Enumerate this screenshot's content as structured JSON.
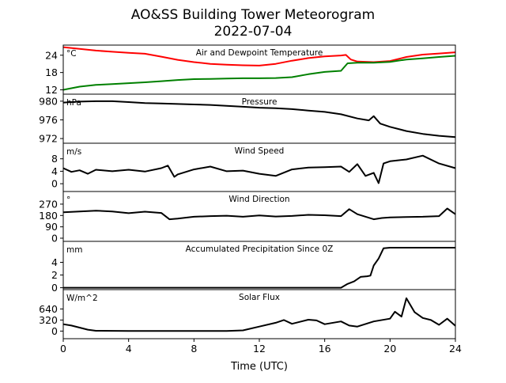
{
  "chart_data": {
    "type": "line",
    "title": "AO&SS Building Tower Meteorogram",
    "subtitle": "2022-07-04",
    "xlabel": "Time (UTC)",
    "xlim": [
      0,
      24
    ],
    "xticks": [
      0,
      4,
      8,
      12,
      16,
      20,
      24
    ],
    "panels": [
      {
        "title": "Air and Dewpoint Temperature",
        "unit": "°C",
        "ylim": [
          10.5,
          27.5
        ],
        "yticks": [
          12,
          18,
          24
        ],
        "series": [
          {
            "color": "#ff0000",
            "x": [
              0,
              1,
              2,
              3,
              4,
              5,
              6,
              7,
              8,
              9,
              10,
              11,
              12,
              13,
              14,
              15,
              16,
              17,
              17.3,
              17.6,
              18,
              19,
              20,
              21,
              22,
              23,
              24
            ],
            "y": [
              26.8,
              26.2,
              25.6,
              25.2,
              24.8,
              24.5,
              23.5,
              22.4,
              21.6,
              21.0,
              20.7,
              20.5,
              20.4,
              21.0,
              22.1,
              23.0,
              23.6,
              23.9,
              24.1,
              22.5,
              21.8,
              21.6,
              22.0,
              23.4,
              24.2,
              24.6,
              25.0
            ]
          },
          {
            "color": "#008000",
            "x": [
              0,
              1,
              2,
              3,
              4,
              5,
              6,
              7,
              8,
              9,
              10,
              11,
              12,
              13,
              14,
              15,
              16,
              17,
              17.4,
              18,
              19,
              20,
              21,
              22,
              23,
              24
            ],
            "y": [
              12.0,
              13.1,
              13.7,
              14.0,
              14.3,
              14.6,
              15.0,
              15.4,
              15.7,
              15.8,
              15.9,
              16.0,
              16.0,
              16.1,
              16.4,
              17.4,
              18.2,
              18.6,
              21.2,
              21.4,
              21.4,
              21.7,
              22.5,
              22.9,
              23.4,
              23.8
            ]
          }
        ]
      },
      {
        "title": "Pressure",
        "unit": "hPa",
        "ylim": [
          971,
          981.5
        ],
        "yticks": [
          972,
          976,
          980
        ],
        "series": [
          {
            "color": "#000000",
            "x": [
              0,
              1,
              2,
              3,
              4,
              5,
              6,
              7,
              8,
              9,
              10,
              11,
              12,
              13,
              14,
              15,
              16,
              17,
              18,
              18.7,
              19.0,
              19.4,
              20,
              21,
              22,
              23,
              24
            ],
            "y": [
              979.7,
              979.9,
              980.0,
              980.0,
              979.8,
              979.6,
              979.5,
              979.4,
              979.3,
              979.2,
              979.0,
              978.8,
              978.6,
              978.5,
              978.3,
              978.0,
              977.7,
              977.2,
              976.3,
              975.9,
              976.8,
              975.2,
              974.5,
              973.6,
              973.0,
              972.6,
              972.3
            ]
          }
        ]
      },
      {
        "title": "Wind Speed",
        "unit": "m/s",
        "ylim": [
          -2.5,
          13
        ],
        "yticks": [
          0,
          4,
          8
        ],
        "series": [
          {
            "color": "#000000",
            "x": [
              0,
              0.5,
              1,
              1.5,
              2,
              3,
              4,
              5,
              6,
              6.4,
              6.8,
              7,
              8,
              9,
              10,
              11,
              12,
              13,
              14,
              15,
              16,
              17,
              17.5,
              18,
              18.5,
              19,
              19.3,
              19.6,
              20,
              21,
              22,
              23,
              24
            ],
            "y": [
              5.0,
              3.8,
              4.3,
              3.2,
              4.5,
              4.0,
              4.5,
              3.9,
              5.0,
              5.8,
              2.2,
              3.0,
              4.6,
              5.5,
              4.0,
              4.2,
              3.2,
              2.5,
              4.6,
              5.2,
              5.3,
              5.5,
              3.8,
              6.3,
              2.5,
              3.5,
              0.2,
              6.5,
              7.2,
              7.8,
              9.0,
              6.5,
              5.0
            ]
          }
        ]
      },
      {
        "title": "Wind Direction",
        "unit": "°",
        "ylim": [
          -25,
          370
        ],
        "yticks": [
          0,
          90,
          180,
          270
        ],
        "series": [
          {
            "color": "#000000",
            "x": [
              0,
              1,
              2,
              3,
              4,
              5,
              6,
              6.5,
              7,
              8,
              9,
              10,
              11,
              12,
              13,
              14,
              15,
              16,
              17,
              17.5,
              18,
              19,
              19.5,
              20,
              21,
              22,
              23,
              23.5,
              24
            ],
            "y": [
              205,
              212,
              218,
              212,
              198,
              210,
              200,
              150,
              155,
              170,
              175,
              178,
              170,
              180,
              172,
              176,
              185,
              182,
              175,
              230,
              190,
              150,
              160,
              165,
              168,
              170,
              175,
              235,
              190
            ]
          }
        ]
      },
      {
        "title": "Accumulated Precipitation Since 0Z",
        "unit": "mm",
        "ylim": [
          -0.3,
          7.3
        ],
        "yticks": [
          0,
          2,
          4
        ],
        "series": [
          {
            "color": "#000000",
            "x": [
              0,
              17.0,
              17.4,
              17.8,
              18.2,
              18.6,
              18.8,
              19.0,
              19.3,
              19.6,
              20,
              24
            ],
            "y": [
              0,
              0,
              0.6,
              1.0,
              1.7,
              1.8,
              1.9,
              3.5,
              4.6,
              6.2,
              6.3,
              6.3
            ]
          }
        ]
      },
      {
        "title": "Solar Flux",
        "unit": "W/m^2",
        "ylim": [
          -220,
          1200
        ],
        "yticks": [
          0,
          320,
          640
        ],
        "series": [
          {
            "color": "#000000",
            "x": [
              0,
              0.5,
              1,
              1.5,
              2,
              4,
              6,
              8,
              10,
              11,
              12,
              13,
              13.5,
              14,
              15,
              15.5,
              16,
              17,
              17.5,
              18,
              19,
              20,
              20.3,
              20.7,
              21,
              21.5,
              22,
              22.5,
              23,
              23.5,
              24
            ],
            "y": [
              200,
              160,
              100,
              40,
              10,
              5,
              5,
              5,
              5,
              20,
              130,
              240,
              320,
              210,
              330,
              310,
              200,
              280,
              160,
              130,
              280,
              360,
              560,
              420,
              950,
              550,
              380,
              320,
              180,
              360,
              150
            ]
          }
        ]
      }
    ]
  }
}
